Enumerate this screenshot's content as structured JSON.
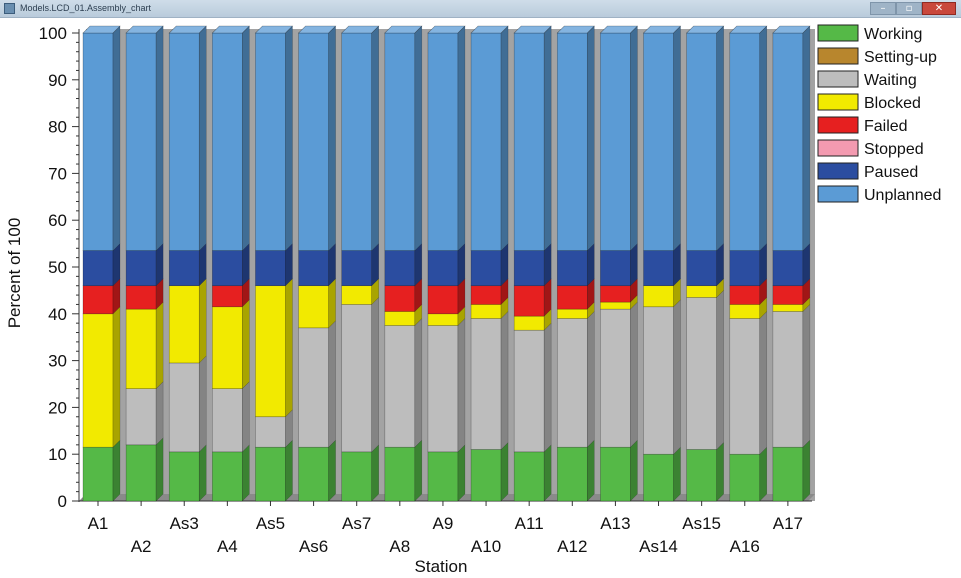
{
  "window": {
    "title": "Models.LCD_01.Assembly_chart",
    "minimize_glyph": "–",
    "maximize_glyph": "▫",
    "close_glyph": "✕"
  },
  "chart_data": {
    "type": "bar",
    "stacked": true,
    "xlabel": "Station",
    "ylabel": "Percent of 100",
    "ylim": [
      0,
      100
    ],
    "yticks": [
      0,
      10,
      20,
      30,
      40,
      50,
      60,
      70,
      80,
      90,
      100
    ],
    "legend_position": "right",
    "grid": false,
    "categories": [
      "A1",
      "A2",
      "As3",
      "A4",
      "As5",
      "As6",
      "As7",
      "A8",
      "A9",
      "A10",
      "A11",
      "A12",
      "A13",
      "As14",
      "As15",
      "A16",
      "A17"
    ],
    "series": [
      {
        "name": "Working",
        "color": "#55b947",
        "values": [
          11.5,
          12,
          10.5,
          10.5,
          11.5,
          11.5,
          10.5,
          11.5,
          10.5,
          11,
          10.5,
          11.5,
          11.5,
          10,
          11,
          10,
          11.5
        ]
      },
      {
        "name": "Setting-up",
        "color": "#b8862d",
        "values": [
          0,
          0,
          0,
          0,
          0,
          0,
          0,
          0,
          0,
          0,
          0,
          0,
          0,
          0,
          0,
          0,
          0
        ]
      },
      {
        "name": "Waiting",
        "color": "#bdbdbd",
        "values": [
          0,
          12,
          19,
          13.5,
          6.5,
          25.5,
          31.5,
          26,
          27,
          28,
          26,
          27.5,
          29.5,
          31.5,
          32.5,
          29,
          29
        ]
      },
      {
        "name": "Blocked",
        "color": "#f2ea00",
        "values": [
          28.5,
          17,
          16.5,
          17.5,
          28,
          9,
          4,
          3,
          2.5,
          3,
          3,
          2,
          1.5,
          4.5,
          2.5,
          3,
          1.5
        ]
      },
      {
        "name": "Failed",
        "color": "#e62020",
        "values": [
          6,
          5,
          0,
          4.5,
          0,
          0,
          0,
          5.5,
          6,
          4,
          6.5,
          5,
          3.5,
          0,
          0,
          4,
          4
        ]
      },
      {
        "name": "Stopped",
        "color": "#f39ab0",
        "values": [
          0,
          0,
          0,
          0,
          0,
          0,
          0,
          0,
          0,
          0,
          0,
          0,
          0,
          0,
          0,
          0,
          0
        ]
      },
      {
        "name": "Paused",
        "color": "#2b4da0",
        "values": [
          7.5,
          7.5,
          7.5,
          7.5,
          7.5,
          7.5,
          7.5,
          7.5,
          7.5,
          7.5,
          7.5,
          7.5,
          7.5,
          7.5,
          7.5,
          7.5,
          7.5
        ]
      },
      {
        "name": "Unplanned",
        "color": "#5b9bd5",
        "values": [
          46.5,
          46.5,
          46.5,
          46.5,
          46.5,
          46.5,
          46.5,
          46.5,
          46.5,
          46.5,
          46.5,
          46.5,
          46.5,
          46.5,
          46.5,
          46.5,
          46.5
        ]
      }
    ]
  }
}
